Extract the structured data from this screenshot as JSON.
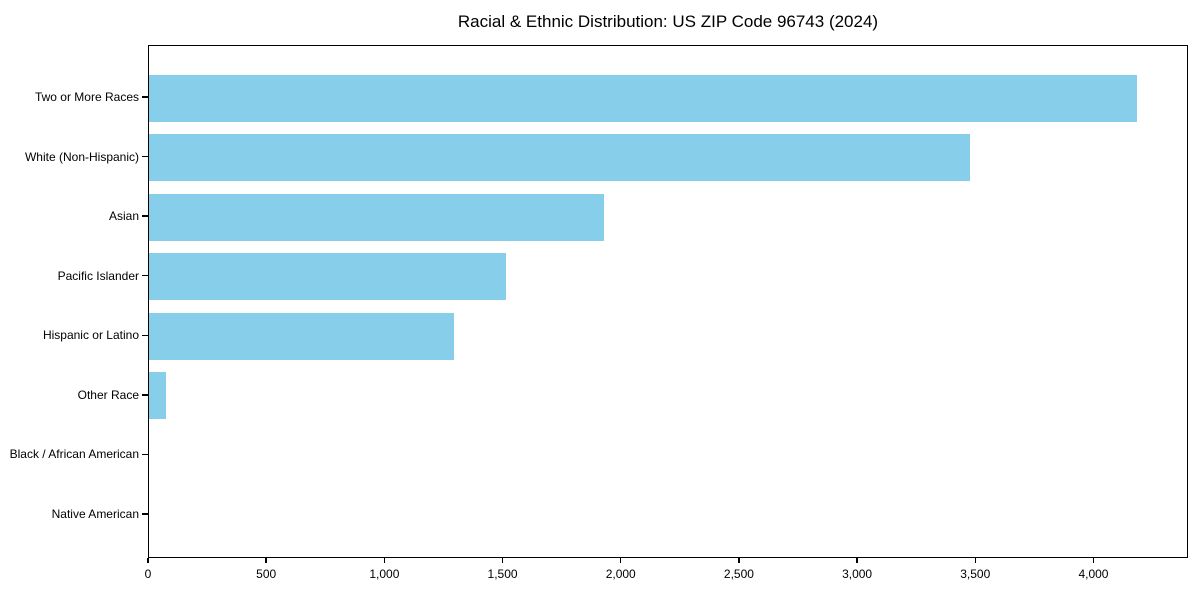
{
  "chart_data": {
    "type": "bar",
    "orientation": "horizontal",
    "title": "Racial & Ethnic Distribution: US ZIP Code 96743 (2024)",
    "categories": [
      "Two or More Races",
      "White (Non-Hispanic)",
      "Asian",
      "Pacific Islander",
      "Hispanic or Latino",
      "Other Race",
      "Black / African American",
      "Native American"
    ],
    "values": [
      4180,
      3475,
      1925,
      1510,
      1290,
      70,
      0,
      0
    ],
    "xlabel": "",
    "ylabel": "",
    "xlim": [
      0,
      4400
    ],
    "x_ticks": {
      "values": [
        0,
        500,
        1000,
        1500,
        2000,
        2500,
        3000,
        3500,
        4000
      ],
      "labels": [
        "0",
        "500",
        "1,000",
        "1,500",
        "2,000",
        "2,500",
        "3,000",
        "3,500",
        "4,000"
      ]
    },
    "bar_color": "#87CEEB",
    "axis_color": "#000000",
    "text_color": "#000000",
    "grid": false,
    "legend": null
  }
}
